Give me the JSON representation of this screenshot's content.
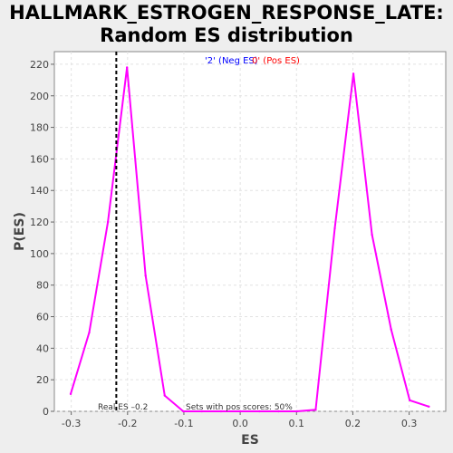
{
  "chart_data": {
    "type": "line",
    "title_line1": "HALLMARK_ESTROGEN_RESPONSE_LATE:",
    "title_line2": "Random ES distribution",
    "xlabel": "ES",
    "ylabel": "P(ES)",
    "xlim": [
      -0.33,
      0.365
    ],
    "ylim": [
      0,
      228
    ],
    "x_ticks": [
      -0.3,
      -0.2,
      -0.1,
      0.0,
      0.1,
      0.2,
      0.3
    ],
    "y_ticks": [
      0,
      20,
      40,
      60,
      80,
      100,
      120,
      140,
      160,
      180,
      200,
      220
    ],
    "x_tick_labels": [
      "-0.3",
      "-0.2",
      "-0.1",
      "0.0",
      "0.1",
      "0.2",
      "0.3"
    ],
    "y_tick_labels": [
      "0",
      "20",
      "40",
      "60",
      "80",
      "100",
      "120",
      "140",
      "160",
      "180",
      "200",
      "220"
    ],
    "grid": true,
    "series": [
      {
        "color": "#ff00ff",
        "x": [
          -0.301,
          -0.268,
          -0.235,
          -0.201,
          -0.168,
          -0.134,
          -0.101,
          -0.068,
          -0.034,
          0.0,
          0.034,
          0.068,
          0.101,
          0.134,
          0.168,
          0.201,
          0.234,
          0.268,
          0.301,
          0.335
        ],
        "y": [
          11,
          50,
          120,
          218,
          86,
          10,
          0,
          0,
          0,
          0,
          0,
          0,
          0,
          1,
          116,
          214,
          112,
          52,
          7,
          3
        ]
      }
    ],
    "real_es": {
      "value": -0.22,
      "label": "Real ES –0.2",
      "line_color": "#000000"
    },
    "legend": {
      "neg_label": "'2' (Neg ES)",
      "neg_color": "#0000ff",
      "pos_label": "0' (Pos ES)",
      "pos_color": "#ff0000",
      "placement": "top-center"
    },
    "annotation": "Sets with pos scores: 50%"
  }
}
